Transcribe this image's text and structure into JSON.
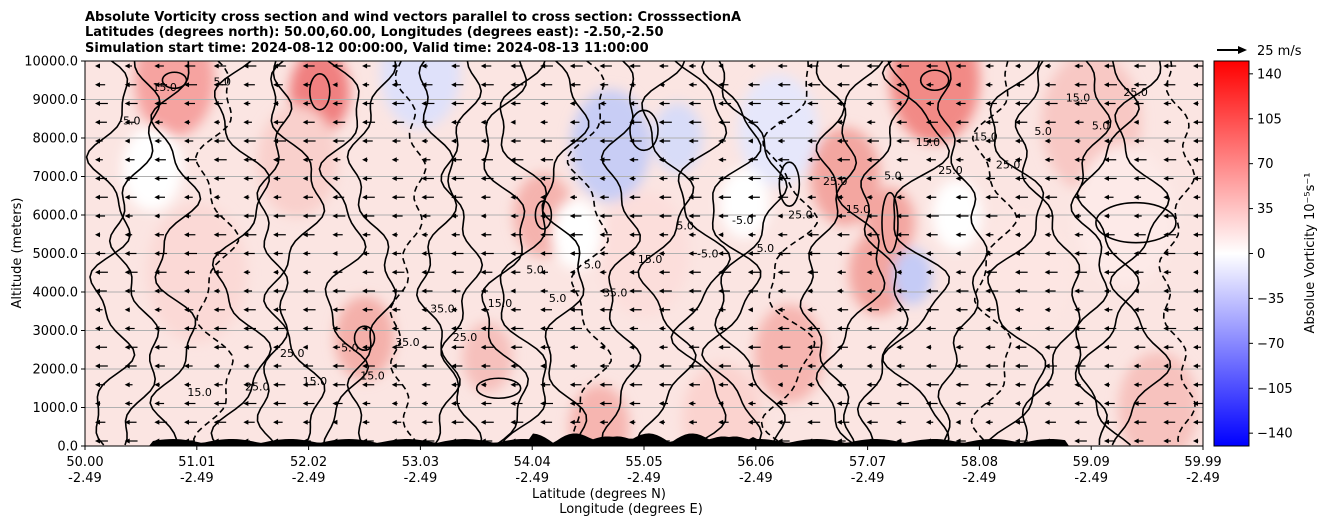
{
  "title_lines": [
    "Absolute Vorticity cross section and wind vectors parallel to cross section: CrosssectionA",
    "Latitudes (degrees north): 50.00,60.00, Longitudes (degrees east): -2.50,-2.50",
    "Simulation start time: 2024-08-12 00:00:00, Valid time: 2024-08-13 11:00:00"
  ],
  "quiver_key_label": "25 m/s",
  "chart_data": {
    "type": "heatmap",
    "title": "Absolute Vorticity cross section and wind vectors parallel to cross section: CrosssectionA",
    "ylabel": "Altitude (meters)",
    "xlabel_lines": [
      "Latitude (degrees N)",
      "Longitude (degrees E)"
    ],
    "ylim": [
      0,
      10000
    ],
    "xlim": [
      50.0,
      59.99
    ],
    "y_ticks": [
      0,
      1000,
      2000,
      3000,
      4000,
      5000,
      6000,
      7000,
      8000,
      9000,
      10000
    ],
    "y_tick_labels": [
      "0.0",
      "1000.0",
      "2000.0",
      "3000.0",
      "4000.0",
      "5000.0",
      "6000.0",
      "7000.0",
      "8000.0",
      "9000.0",
      "10000.0"
    ],
    "x_ticks": [
      {
        "lat": "50.00",
        "lon": "-2.49"
      },
      {
        "lat": "51.01",
        "lon": "-2.49"
      },
      {
        "lat": "52.02",
        "lon": "-2.49"
      },
      {
        "lat": "53.03",
        "lon": "-2.49"
      },
      {
        "lat": "54.04",
        "lon": "-2.49"
      },
      {
        "lat": "55.05",
        "lon": "-2.49"
      },
      {
        "lat": "56.06",
        "lon": "-2.49"
      },
      {
        "lat": "57.07",
        "lon": "-2.49"
      },
      {
        "lat": "58.08",
        "lon": "-2.49"
      },
      {
        "lat": "59.09",
        "lon": "-2.49"
      },
      {
        "lat": "59.99",
        "lon": "-2.49"
      }
    ],
    "grid": "horizontal",
    "colorbar": {
      "label": "Absolue Vorticity 10⁻⁵s⁻¹",
      "range": [
        -150,
        150
      ],
      "ticks": [
        "140",
        "105",
        "70",
        "35",
        "0",
        "−35",
        "−70",
        "−105",
        "−140"
      ],
      "colors": {
        "neg": "#0000ff",
        "zero": "#ffffff",
        "pos": "#ff0000"
      }
    },
    "wind_vectors": "mostly westward (pointing left)",
    "contour_labels": [
      "-5.0",
      "5.0",
      "15.0",
      "25.0",
      "35.0",
      "5.0",
      "15.0",
      "25.0",
      "5.0",
      "-5.0",
      "15.0",
      "25.0",
      "5.0",
      "15.0",
      "25.0",
      "35.0",
      "5.0",
      "15.0",
      "25.0",
      "5.0",
      "15.0",
      "25.0",
      "-5.0",
      "5.0",
      "15.0",
      "5.0",
      "15.0",
      "25.0",
      "35.0",
      "15.0",
      "5.0",
      "25.0",
      "15.0",
      "5.0"
    ]
  }
}
